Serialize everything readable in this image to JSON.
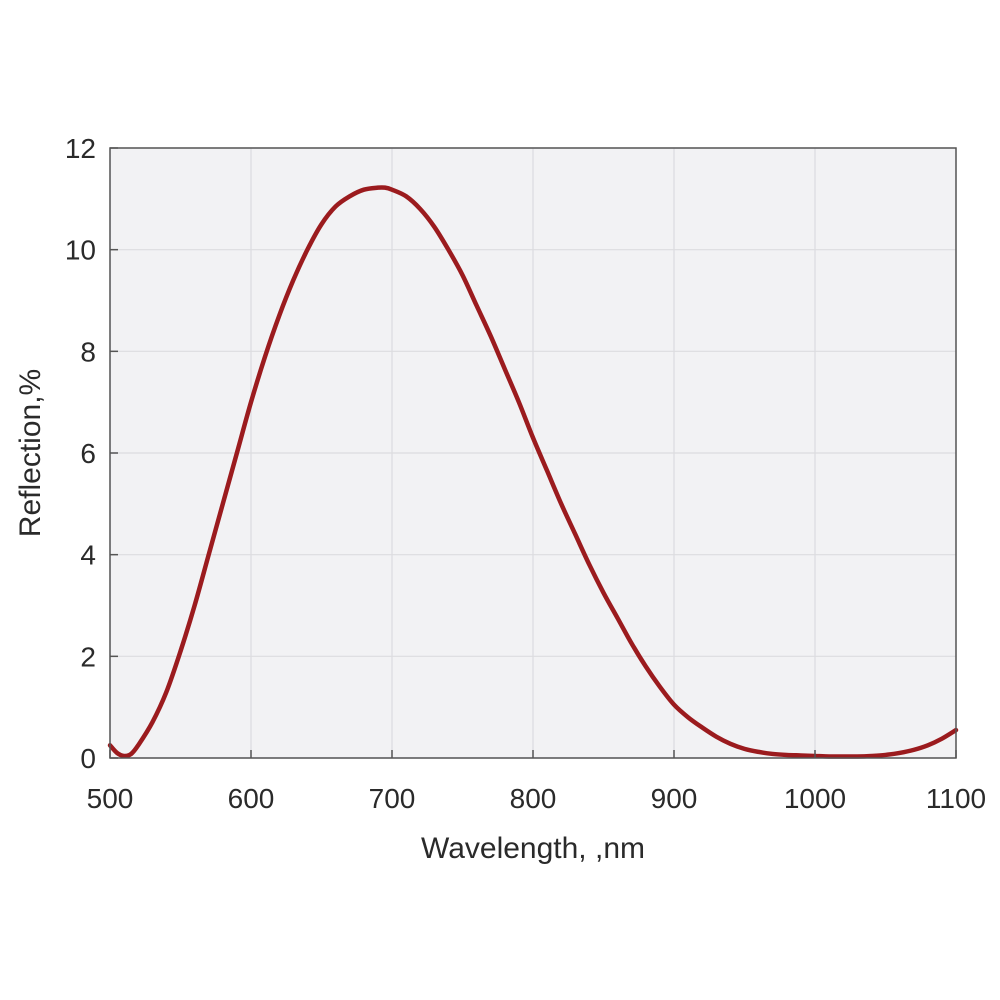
{
  "chart_data": {
    "type": "line",
    "title": "",
    "xlabel": "Wavelength, ,nm",
    "ylabel": "Reflection,%",
    "xlim": [
      500,
      1100
    ],
    "ylim": [
      0,
      12
    ],
    "xticks": [
      500,
      600,
      700,
      800,
      900,
      1000,
      1100
    ],
    "yticks": [
      0,
      2,
      4,
      6,
      8,
      10,
      12
    ],
    "xtick_labels": [
      "500",
      "600",
      "700",
      "800",
      "900",
      "1000",
      "1100"
    ],
    "ytick_labels": [
      "0",
      "2",
      "4",
      "6",
      "8",
      "10",
      "12"
    ],
    "grid": true,
    "legend": "none",
    "series": [
      {
        "color": "#9b1b1e",
        "x": [
          500,
          505,
          510,
          515,
          520,
          530,
          540,
          550,
          560,
          570,
          580,
          590,
          600,
          610,
          620,
          630,
          640,
          650,
          660,
          670,
          680,
          690,
          695,
          700,
          710,
          720,
          730,
          740,
          750,
          760,
          770,
          780,
          790,
          800,
          810,
          820,
          830,
          840,
          850,
          860,
          870,
          880,
          890,
          900,
          910,
          920,
          930,
          940,
          950,
          960,
          970,
          980,
          990,
          1000,
          1010,
          1020,
          1030,
          1040,
          1050,
          1060,
          1070,
          1080,
          1090,
          1100
        ],
        "y": [
          0.25,
          0.1,
          0.04,
          0.08,
          0.25,
          0.7,
          1.3,
          2.1,
          3.0,
          4.0,
          5.0,
          6.0,
          7.0,
          7.9,
          8.7,
          9.4,
          10.0,
          10.5,
          10.85,
          11.05,
          11.18,
          11.22,
          11.22,
          11.18,
          11.05,
          10.8,
          10.45,
          10.0,
          9.5,
          8.9,
          8.3,
          7.65,
          7.0,
          6.3,
          5.65,
          5.0,
          4.4,
          3.8,
          3.25,
          2.75,
          2.25,
          1.8,
          1.4,
          1.05,
          0.8,
          0.6,
          0.42,
          0.28,
          0.18,
          0.12,
          0.08,
          0.06,
          0.05,
          0.04,
          0.03,
          0.03,
          0.03,
          0.04,
          0.06,
          0.1,
          0.16,
          0.25,
          0.38,
          0.55
        ]
      }
    ]
  }
}
